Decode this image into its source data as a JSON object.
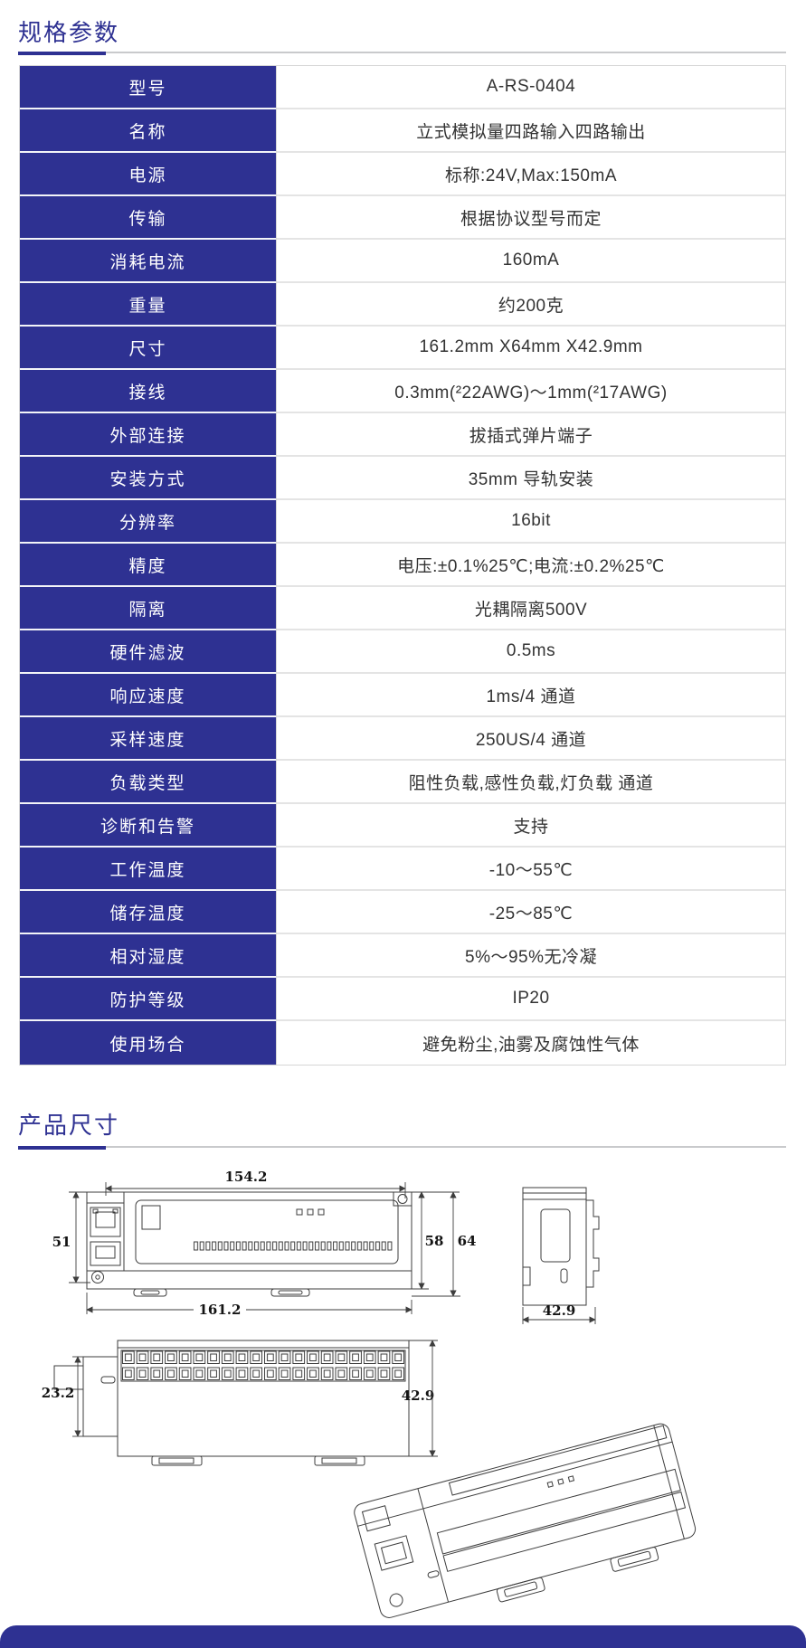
{
  "page": {
    "accent_color": "#2e3192"
  },
  "sections": {
    "specs_title": "规格参数",
    "dimensions_title": "产品尺寸"
  },
  "spec_table": {
    "rows": [
      {
        "label": "型号",
        "value": "A-RS-0404"
      },
      {
        "label": "名称",
        "value": "立式模拟量四路输入四路输出"
      },
      {
        "label": "电源",
        "value": "标称:24V,Max:150mA"
      },
      {
        "label": "传输",
        "value": "根据协议型号而定"
      },
      {
        "label": "消耗电流",
        "value": "160mA"
      },
      {
        "label": "重量",
        "value": "约200克"
      },
      {
        "label": "尺寸",
        "value": "161.2mm X64mm X42.9mm"
      },
      {
        "label": "接线",
        "value": "0.3mm(²22AWG)～1mm(²17AWG)"
      },
      {
        "label": "外部连接",
        "value": "拔插式弹片端子"
      },
      {
        "label": "安装方式",
        "value": "35mm 导轨安装"
      },
      {
        "label": "分辨率",
        "value": "16bit"
      },
      {
        "label": "精度",
        "value": "电压:±0.1%25℃;电流:±0.2%25℃"
      },
      {
        "label": "隔离",
        "value": "光耦隔离500V"
      },
      {
        "label": "硬件滤波",
        "value": "0.5ms"
      },
      {
        "label": "响应速度",
        "value": "1ms/4 通道"
      },
      {
        "label": "采样速度",
        "value": "250US/4 通道"
      },
      {
        "label": "负载类型",
        "value": "阻性负载,感性负载,灯负载 通道"
      },
      {
        "label": "诊断和告警",
        "value": "支持"
      },
      {
        "label": "工作温度",
        "value": "-10～55℃"
      },
      {
        "label": "储存温度",
        "value": "-25～85℃"
      },
      {
        "label": "相对湿度",
        "value": "5%～95%无冷凝"
      },
      {
        "label": "防护等级",
        "value": "IP20"
      },
      {
        "label": "使用场合",
        "value": "避免粉尘,油雾及腐蚀性气体"
      }
    ]
  },
  "drawings": {
    "front_view": {
      "dim_width_top": "154.2",
      "dim_height_left": "51",
      "dim_height_body": "58",
      "dim_height_total": "64",
      "dim_width_bottom": "161.2"
    },
    "side_view": {
      "dim_width": "42.9"
    },
    "bottom_view": {
      "dim_step": "23.2",
      "dim_depth": "42.9"
    }
  }
}
